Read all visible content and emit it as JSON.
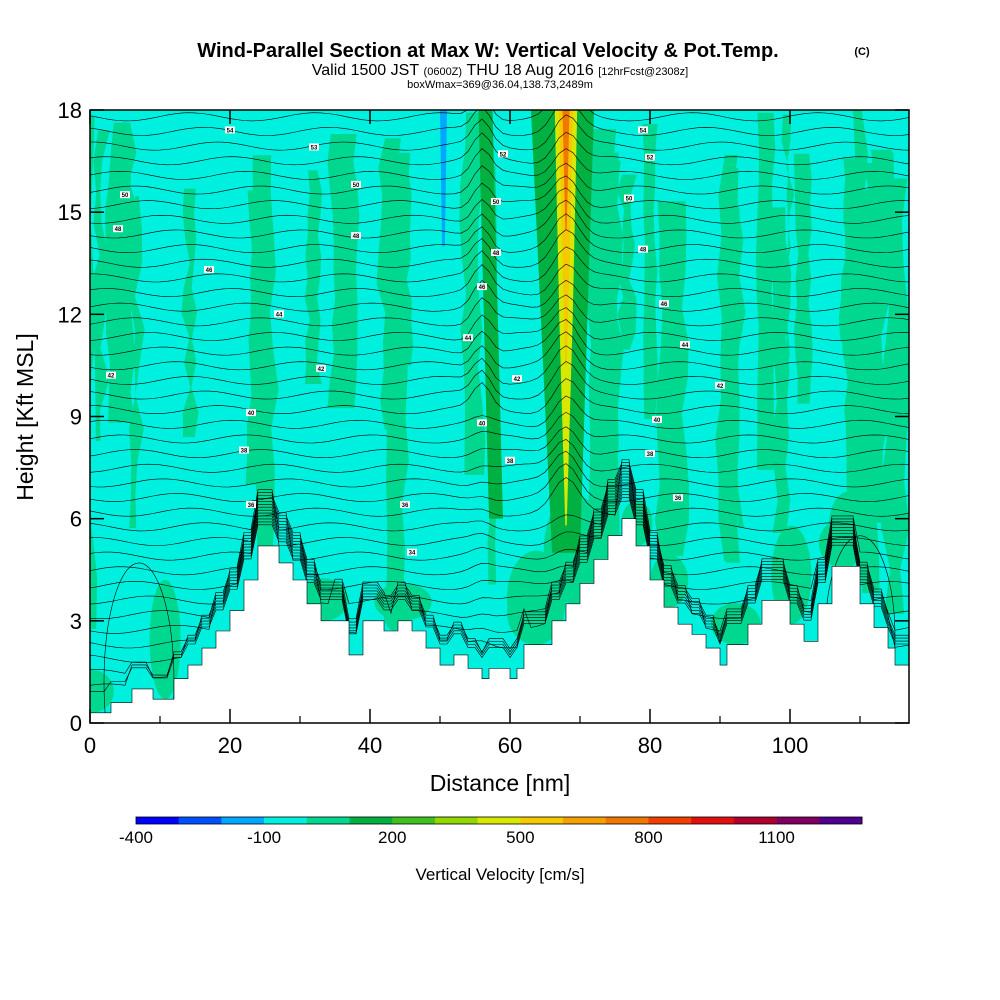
{
  "header": {
    "title": "Wind-Parallel Section at Max W: Vertical Velocity & Pot.Temp.",
    "title_mark": "(C)",
    "subtitle_valid": "Valid 1500 JST",
    "subtitle_utc": "(0600Z)",
    "subtitle_date": "THU 18 Aug 2016",
    "subtitle_fcst": "[12hrFcst@2308z]",
    "boxinfo": "boxWmax=369@36.04,138.73,2489m"
  },
  "chart_data": {
    "type": "heatmap",
    "xlabel": "Distance [nm]",
    "ylabel": "Height [Kft MSL]",
    "xlim": [
      0,
      117
    ],
    "ylim": [
      0,
      18
    ],
    "x_ticks": [
      0,
      20,
      40,
      60,
      80,
      100
    ],
    "y_ticks": [
      0,
      3,
      6,
      9,
      12,
      15,
      18
    ],
    "terrain_kft": [
      [
        0,
        0.3
      ],
      [
        3,
        0.3
      ],
      [
        3,
        0.6
      ],
      [
        6,
        0.6
      ],
      [
        6,
        1.0
      ],
      [
        9,
        1.0
      ],
      [
        9,
        0.7
      ],
      [
        12,
        0.7
      ],
      [
        12,
        1.3
      ],
      [
        14,
        1.3
      ],
      [
        14,
        1.7
      ],
      [
        16,
        1.7
      ],
      [
        16,
        2.2
      ],
      [
        18,
        2.2
      ],
      [
        18,
        2.7
      ],
      [
        20,
        2.7
      ],
      [
        20,
        3.3
      ],
      [
        22,
        3.3
      ],
      [
        22,
        4.2
      ],
      [
        24,
        4.2
      ],
      [
        24,
        5.2
      ],
      [
        26,
        5.2
      ],
      [
        27,
        5.2
      ],
      [
        27,
        4.7
      ],
      [
        29,
        4.7
      ],
      [
        29,
        4.2
      ],
      [
        31,
        4.2
      ],
      [
        31,
        3.5
      ],
      [
        33,
        3.5
      ],
      [
        33,
        3.0
      ],
      [
        37,
        3.0
      ],
      [
        37,
        2.0
      ],
      [
        39,
        2.0
      ],
      [
        39,
        3.0
      ],
      [
        42,
        3.0
      ],
      [
        42,
        2.7
      ],
      [
        44,
        2.7
      ],
      [
        44,
        3.0
      ],
      [
        46,
        3.0
      ],
      [
        46,
        2.7
      ],
      [
        48,
        2.7
      ],
      [
        48,
        2.2
      ],
      [
        50,
        2.2
      ],
      [
        50,
        1.7
      ],
      [
        52,
        1.7
      ],
      [
        52,
        2.0
      ],
      [
        54,
        2.0
      ],
      [
        54,
        1.6
      ],
      [
        56,
        1.6
      ],
      [
        56,
        1.3
      ],
      [
        57,
        1.3
      ],
      [
        57,
        1.6
      ],
      [
        60,
        1.6
      ],
      [
        60,
        1.3
      ],
      [
        61,
        1.3
      ],
      [
        61,
        1.6
      ],
      [
        62,
        1.6
      ],
      [
        62,
        2.3
      ],
      [
        66,
        2.3
      ],
      [
        66,
        3.0
      ],
      [
        68,
        3.0
      ],
      [
        68,
        3.5
      ],
      [
        70,
        3.5
      ],
      [
        70,
        4.1
      ],
      [
        72,
        4.1
      ],
      [
        72,
        4.8
      ],
      [
        74,
        4.8
      ],
      [
        74,
        5.5
      ],
      [
        76,
        5.5
      ],
      [
        76,
        6.0
      ],
      [
        78,
        6.0
      ],
      [
        78,
        5.2
      ],
      [
        80,
        5.2
      ],
      [
        80,
        4.2
      ],
      [
        82,
        4.2
      ],
      [
        82,
        3.4
      ],
      [
        84,
        3.4
      ],
      [
        84,
        2.9
      ],
      [
        86,
        2.9
      ],
      [
        86,
        2.6
      ],
      [
        88,
        2.6
      ],
      [
        88,
        2.2
      ],
      [
        90,
        2.2
      ],
      [
        90,
        1.7
      ],
      [
        91,
        1.7
      ],
      [
        91,
        2.3
      ],
      [
        94,
        2.3
      ],
      [
        94,
        2.9
      ],
      [
        96,
        2.9
      ],
      [
        96,
        3.6
      ],
      [
        100,
        3.6
      ],
      [
        100,
        2.9
      ],
      [
        102,
        2.9
      ],
      [
        102,
        2.4
      ],
      [
        104,
        2.4
      ],
      [
        104,
        3.5
      ],
      [
        106,
        3.5
      ],
      [
        106,
        4.6
      ],
      [
        108,
        4.6
      ],
      [
        110,
        4.6
      ],
      [
        110,
        3.5
      ],
      [
        112,
        3.5
      ],
      [
        112,
        2.8
      ],
      [
        114,
        2.8
      ],
      [
        114,
        2.2
      ],
      [
        115,
        2.2
      ],
      [
        115,
        1.7
      ],
      [
        117,
        1.7
      ]
    ],
    "updraft_core": [
      {
        "x": 68,
        "y_top": 18,
        "y_bottom": 5.8,
        "half_width_nm": 1.6,
        "value": 400,
        "color": "#d8e800"
      },
      {
        "x": 68,
        "y_top": 18,
        "y_bottom": 10.5,
        "half_width_nm": 1.0,
        "value": 500,
        "color": "#f5c800"
      },
      {
        "x": 68,
        "y_top": 18,
        "y_bottom": 14.5,
        "half_width_nm": 0.5,
        "value": 800,
        "color": "#f07800"
      }
    ],
    "downdraft_streaks": [
      {
        "x": 50.5,
        "y_top": 18,
        "y_bottom": 14.0,
        "color": "#00a8ff"
      },
      {
        "x": 56.5,
        "y_top": 15.5,
        "y_bottom": 12.0,
        "color": "#00a8ff"
      }
    ],
    "contour_labels": [
      {
        "x": 20,
        "y": 17.4,
        "text": "54"
      },
      {
        "x": 32,
        "y": 16.9,
        "text": "53"
      },
      {
        "x": 5,
        "y": 15.5,
        "text": "50"
      },
      {
        "x": 38,
        "y": 15.8,
        "text": "50"
      },
      {
        "x": 4,
        "y": 14.5,
        "text": "48"
      },
      {
        "x": 38,
        "y": 14.3,
        "text": "48"
      },
      {
        "x": 17,
        "y": 13.3,
        "text": "46"
      },
      {
        "x": 27,
        "y": 12.0,
        "text": "44"
      },
      {
        "x": 3,
        "y": 10.2,
        "text": "42"
      },
      {
        "x": 33,
        "y": 10.4,
        "text": "42"
      },
      {
        "x": 23,
        "y": 9.1,
        "text": "40"
      },
      {
        "x": 22,
        "y": 8.0,
        "text": "38"
      },
      {
        "x": 23,
        "y": 6.4,
        "text": "36"
      },
      {
        "x": 45,
        "y": 6.4,
        "text": "36"
      },
      {
        "x": 46,
        "y": 5.0,
        "text": "34"
      },
      {
        "x": 59,
        "y": 16.7,
        "text": "52"
      },
      {
        "x": 58,
        "y": 15.3,
        "text": "50"
      },
      {
        "x": 58,
        "y": 13.8,
        "text": "48"
      },
      {
        "x": 56,
        "y": 12.8,
        "text": "46"
      },
      {
        "x": 54,
        "y": 11.3,
        "text": "44"
      },
      {
        "x": 61,
        "y": 10.1,
        "text": "42"
      },
      {
        "x": 56,
        "y": 8.8,
        "text": "40"
      },
      {
        "x": 60,
        "y": 7.7,
        "text": "38"
      },
      {
        "x": 79,
        "y": 17.4,
        "text": "54"
      },
      {
        "x": 80,
        "y": 16.6,
        "text": "52"
      },
      {
        "x": 77,
        "y": 15.4,
        "text": "50"
      },
      {
        "x": 79,
        "y": 13.9,
        "text": "48"
      },
      {
        "x": 82,
        "y": 12.3,
        "text": "46"
      },
      {
        "x": 85,
        "y": 11.1,
        "text": "44"
      },
      {
        "x": 90,
        "y": 9.9,
        "text": "42"
      },
      {
        "x": 81,
        "y": 8.9,
        "text": "40"
      },
      {
        "x": 80,
        "y": 7.9,
        "text": "38"
      },
      {
        "x": 84,
        "y": 6.6,
        "text": "36"
      }
    ],
    "colorbar": {
      "title": "Vertical Velocity [cm/s]",
      "labels": [
        "-400",
        "-100",
        "200",
        "500",
        "800",
        "1100"
      ],
      "colors": [
        "#0000ff",
        "#0050ff",
        "#00a8ff",
        "#00f0e0",
        "#00d890",
        "#00b040",
        "#40c020",
        "#90d800",
        "#d8e800",
        "#f5c800",
        "#f5a000",
        "#f07800",
        "#f04000",
        "#e01010",
        "#b00030",
        "#800060",
        "#500090"
      ]
    }
  }
}
